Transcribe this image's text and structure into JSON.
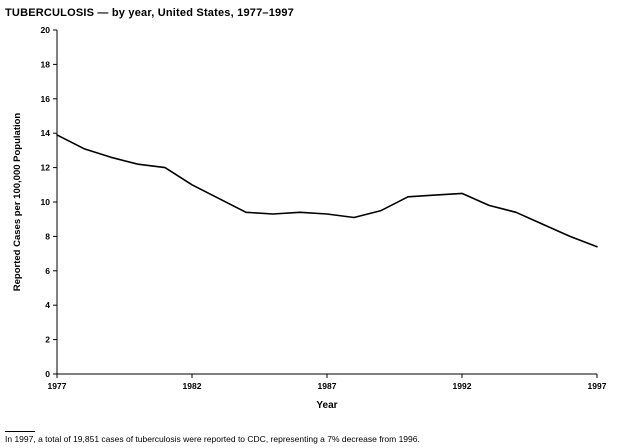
{
  "title": "TUBERCULOSIS — by year, United States, 1977–1997",
  "footnote": "In 1997, a total of 19,851 cases of tuberculosis were reported to CDC, representing a 7% decrease from 1996.",
  "chart_data": {
    "type": "line",
    "title": "TUBERCULOSIS — by year, United States, 1977–1997",
    "xlabel": "Year",
    "ylabel": "Reported Cases per 100,000 Population",
    "ylim": [
      0,
      20
    ],
    "ytick_step": 2,
    "xticks": [
      1977,
      1982,
      1987,
      1992,
      1997
    ],
    "x": [
      1977,
      1978,
      1979,
      1980,
      1981,
      1982,
      1983,
      1984,
      1985,
      1986,
      1987,
      1988,
      1989,
      1990,
      1991,
      1992,
      1993,
      1994,
      1995,
      1996,
      1997
    ],
    "values": [
      13.9,
      13.1,
      12.6,
      12.2,
      12.0,
      11.0,
      10.2,
      9.4,
      9.3,
      9.4,
      9.3,
      9.1,
      9.5,
      10.3,
      10.4,
      10.5,
      9.8,
      9.4,
      8.7,
      8.0,
      7.4
    ],
    "line_color": "#000000",
    "axis_color": "#000000",
    "grid": false,
    "legend": "none"
  }
}
